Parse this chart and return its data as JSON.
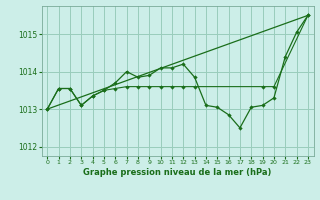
{
  "title": "Graphe pression niveau de la mer (hPa)",
  "background_color": "#cceee8",
  "grid_color": "#99ccbb",
  "line_color": "#1a6e1a",
  "xlim": [
    -0.5,
    23.5
  ],
  "ylim": [
    1011.75,
    1015.75
  ],
  "yticks": [
    1012,
    1013,
    1014,
    1015
  ],
  "xticks": [
    0,
    1,
    2,
    3,
    4,
    5,
    6,
    7,
    8,
    9,
    10,
    11,
    12,
    13,
    14,
    15,
    16,
    17,
    18,
    19,
    20,
    21,
    22,
    23
  ],
  "series1_x": [
    0,
    1,
    2,
    3,
    4,
    5,
    6,
    7,
    8,
    9,
    10,
    11,
    12,
    13,
    14,
    15,
    16,
    17,
    18,
    19,
    20,
    21,
    22,
    23
  ],
  "series1_y": [
    1013.0,
    1013.55,
    1013.55,
    1013.1,
    1013.35,
    1013.5,
    1013.7,
    1014.0,
    1013.85,
    1013.9,
    1014.1,
    1014.1,
    1014.2,
    1013.85,
    1013.1,
    1013.05,
    1012.85,
    1012.5,
    1013.05,
    1013.1,
    1013.3,
    1014.4,
    1015.05,
    1015.5
  ],
  "series2_x": [
    0,
    1,
    2,
    3,
    4,
    5,
    6,
    7,
    8,
    9,
    10,
    11,
    12,
    13,
    19,
    20,
    23
  ],
  "series2_y": [
    1013.0,
    1013.55,
    1013.55,
    1013.1,
    1013.35,
    1013.5,
    1013.55,
    1013.6,
    1013.6,
    1013.6,
    1013.6,
    1013.6,
    1013.6,
    1013.6,
    1013.6,
    1013.6,
    1015.5
  ],
  "series3_x": [
    0,
    23
  ],
  "series3_y": [
    1013.0,
    1015.5
  ]
}
